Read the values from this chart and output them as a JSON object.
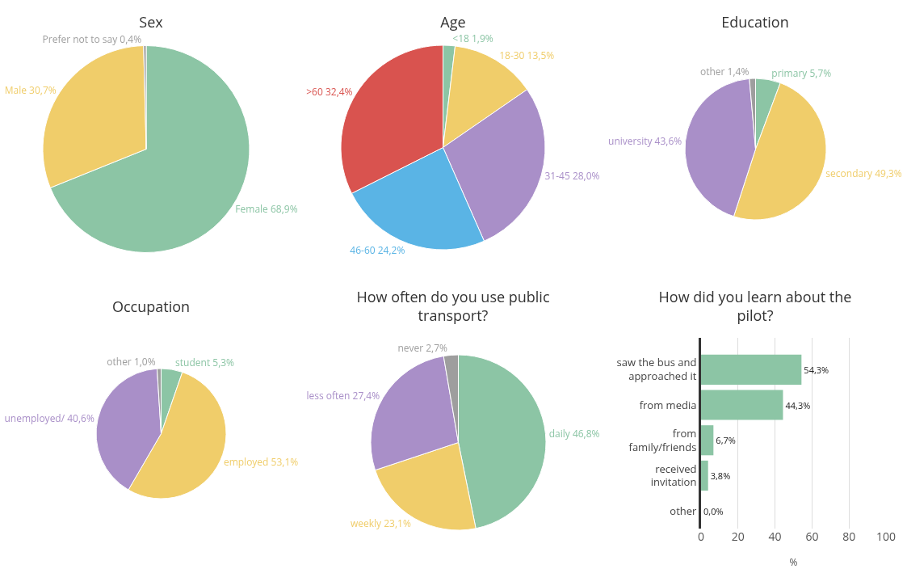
{
  "chart_data": [
    {
      "type": "pie",
      "title": "Sex",
      "categories": [
        "Female",
        "Male",
        "Prefer not to say"
      ],
      "values": [
        68.9,
        30.7,
        0.4
      ],
      "value_labels": [
        "68,9%",
        "30,7%",
        "0,4%"
      ],
      "colors": [
        "#8cc5a5",
        "#f0cd6a",
        "#9e9e9e"
      ],
      "legend": false
    },
    {
      "type": "pie",
      "title": "Age",
      "categories": [
        "<18",
        "18-30",
        "31-45",
        "46-60",
        ">60"
      ],
      "values": [
        1.9,
        13.5,
        28.0,
        24.2,
        32.4
      ],
      "value_labels": [
        "1,9%",
        "13,5%",
        "28,0%",
        "24,2%",
        "32,4%"
      ],
      "colors": [
        "#8cc5a5",
        "#f0cd6a",
        "#a98fc8",
        "#5ab4e5",
        "#d9534f"
      ],
      "legend": false
    },
    {
      "type": "pie",
      "title": "Education",
      "categories": [
        "primary",
        "secondary",
        "university",
        "other"
      ],
      "values": [
        5.7,
        49.3,
        43.6,
        1.4
      ],
      "value_labels": [
        "5,7%",
        "49,3%",
        "43,6%",
        "1,4%"
      ],
      "colors": [
        "#8cc5a5",
        "#f0cd6a",
        "#a98fc8",
        "#9e9e9e"
      ],
      "legend": false
    },
    {
      "type": "pie",
      "title": "Occupation",
      "categories": [
        "student",
        "employed",
        "unemployed/",
        "other"
      ],
      "values": [
        5.3,
        53.1,
        40.6,
        1.0
      ],
      "value_labels": [
        "5,3%",
        "53,1%",
        "40,6%",
        "1,0%"
      ],
      "colors": [
        "#8cc5a5",
        "#f0cd6a",
        "#a98fc8",
        "#9e9e9e"
      ],
      "legend": false
    },
    {
      "type": "pie",
      "title": "How often do you use public transport?",
      "categories": [
        "daily",
        "weekly",
        "less often",
        "never"
      ],
      "values": [
        46.8,
        23.1,
        27.4,
        2.7
      ],
      "value_labels": [
        "46,8%",
        "23,1%",
        "27,4%",
        "2,7%"
      ],
      "colors": [
        "#8cc5a5",
        "#f0cd6a",
        "#a98fc8",
        "#9e9e9e"
      ],
      "legend": false
    },
    {
      "type": "bar",
      "orientation": "horizontal",
      "title": "How did you learn about the pilot?",
      "categories": [
        "saw the bus and approached it",
        "from media",
        "from family/friends",
        "received invitation",
        "other"
      ],
      "values": [
        54.3,
        44.3,
        6.7,
        3.8,
        0.0
      ],
      "value_labels": [
        "54,3%",
        "44,3%",
        "6,7%",
        "3,8%",
        "0,0%"
      ],
      "color": "#8cc5a5",
      "xlabel": "%",
      "xlim": [
        0,
        100
      ],
      "xticks": [
        0,
        20,
        40,
        60,
        80,
        100
      ],
      "grid": "x",
      "legend": false
    }
  ]
}
